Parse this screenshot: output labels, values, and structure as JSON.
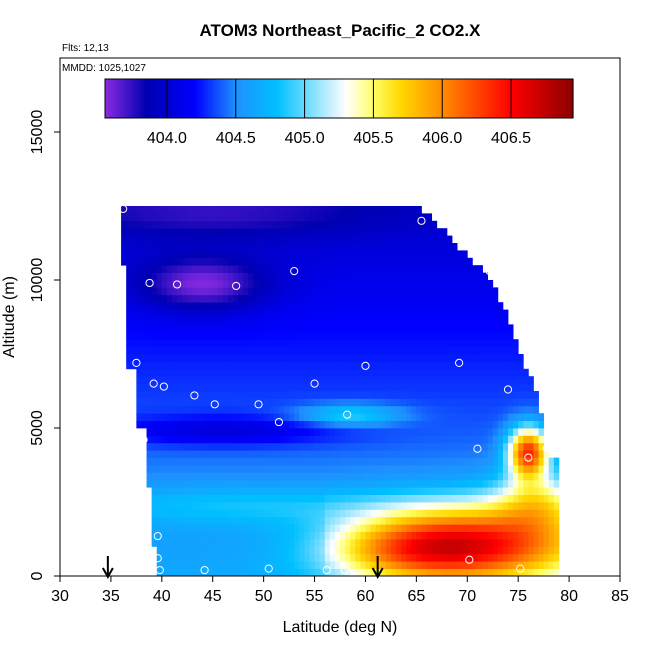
{
  "chart_data": {
    "type": "heatmap",
    "title": "ATOM3 Northeast_Pacific_2 CO2.X",
    "subtitle_lines": [
      "Flts: 12,13",
      "MMDD: 1025,1027"
    ],
    "xlabel": "Latitude (deg N)",
    "ylabel": "Altitude (m)",
    "xlim": [
      30,
      85
    ],
    "ylim": [
      0,
      17500
    ],
    "xticks": [
      30,
      35,
      40,
      45,
      50,
      55,
      60,
      65,
      70,
      75,
      80,
      85
    ],
    "yticks": [
      0,
      5000,
      10000,
      15000
    ],
    "colorbar": {
      "range": [
        403.55,
        406.95
      ],
      "ticks": [
        "404.0",
        "404.5",
        "405.0",
        "405.5",
        "406.0",
        "406.5"
      ],
      "tick_values": [
        404.0,
        404.5,
        405.0,
        405.5,
        406.0,
        406.5
      ],
      "colors": [
        "#8a2be2",
        "#0000b0",
        "#0000ff",
        "#1e90ff",
        "#00bfff",
        "#ffffff",
        "#ffff66",
        "#ffd700",
        "#ff8c00",
        "#ff0000",
        "#8b0000"
      ],
      "stops": [
        403.55,
        403.85,
        404.2,
        404.5,
        404.8,
        405.3,
        405.5,
        405.7,
        406.0,
        406.5,
        406.95
      ]
    },
    "arrows_at_latitude": [
      34.7,
      61.2
    ],
    "measurement_points": [
      [
        36.2,
        12400
      ],
      [
        65.5,
        12000
      ],
      [
        72.2,
        10300
      ],
      [
        53.0,
        10300
      ],
      [
        38.8,
        9900
      ],
      [
        41.5,
        9850
      ],
      [
        47.3,
        9800
      ],
      [
        37.5,
        7200
      ],
      [
        60.0,
        7100
      ],
      [
        69.2,
        7200
      ],
      [
        39.2,
        6500
      ],
      [
        40.2,
        6400
      ],
      [
        55.0,
        6500
      ],
      [
        74.0,
        6300
      ],
      [
        43.2,
        6100
      ],
      [
        45.2,
        5800
      ],
      [
        49.5,
        5800
      ],
      [
        58.2,
        5450
      ],
      [
        51.5,
        5200
      ],
      [
        38.2,
        4600
      ],
      [
        71.0,
        4300
      ],
      [
        77.8,
        4300
      ],
      [
        76.0,
        4000
      ],
      [
        39.6,
        1350
      ],
      [
        39.6,
        600
      ],
      [
        70.2,
        550
      ],
      [
        39.8,
        200
      ],
      [
        44.2,
        200
      ],
      [
        50.5,
        250
      ],
      [
        56.2,
        200
      ],
      [
        58.0,
        200
      ],
      [
        75.2,
        250
      ]
    ]
  }
}
